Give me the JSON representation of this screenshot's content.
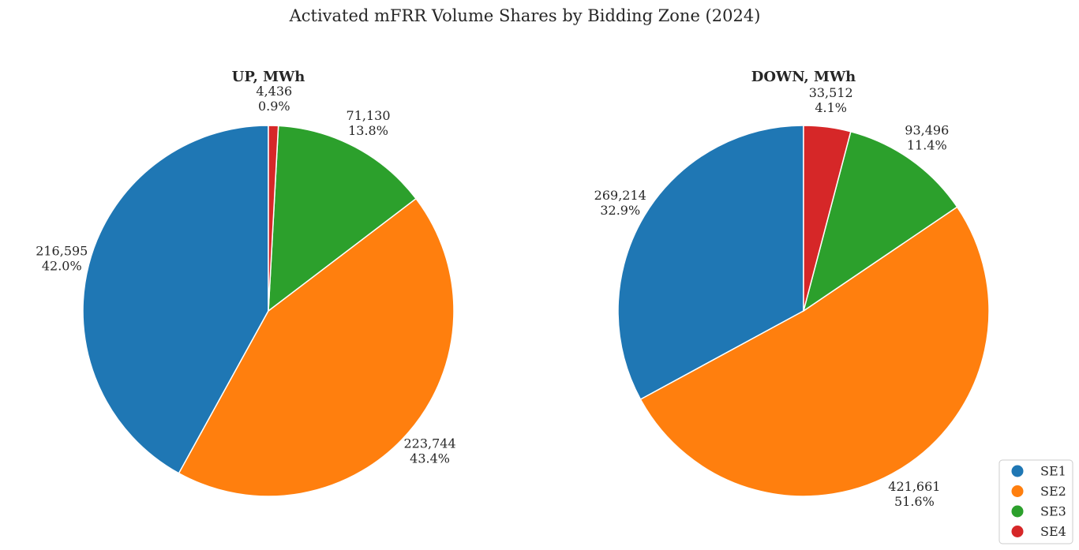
{
  "figure": {
    "title": "Activated mFRR Volume Shares by Bidding Zone (2024)"
  },
  "legend": {
    "placement": "bottom-right",
    "entries": [
      {
        "label": "SE1",
        "color": "#1f77b4"
      },
      {
        "label": "SE2",
        "color": "#ff7f0e"
      },
      {
        "label": "SE3",
        "color": "#2ca02c"
      },
      {
        "label": "SE4",
        "color": "#d62728"
      }
    ]
  },
  "chart_data": [
    {
      "type": "pie",
      "title": "UP, MWh",
      "start_angle_deg": 90,
      "direction": "counterclockwise",
      "categories": [
        "SE1",
        "SE2",
        "SE3",
        "SE4"
      ],
      "values": [
        216595,
        223744,
        71130,
        4436
      ],
      "value_labels": [
        "216,595",
        "223,744",
        "71,130",
        "4,436"
      ],
      "percent_labels": [
        "42.0%",
        "43.4%",
        "13.8%",
        "0.9%"
      ]
    },
    {
      "type": "pie",
      "title": "DOWN, MWh",
      "start_angle_deg": 90,
      "direction": "counterclockwise",
      "categories": [
        "SE1",
        "SE2",
        "SE3",
        "SE4"
      ],
      "values": [
        269214,
        421661,
        93496,
        33512
      ],
      "value_labels": [
        "269,214",
        "421,661",
        "93,496",
        "33,512"
      ],
      "percent_labels": [
        "32.9%",
        "51.6%",
        "11.4%",
        "4.1%"
      ]
    }
  ]
}
